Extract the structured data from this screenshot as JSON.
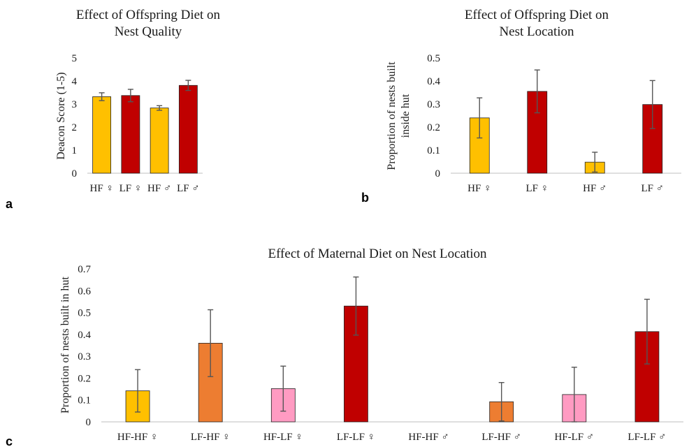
{
  "chart_data": [
    {
      "panel": "a",
      "type": "bar",
      "title_lines": [
        "Effect of Offspring Diet on",
        "Nest Quality"
      ],
      "ylabel_lines": [
        "Deacon Score (1-5)"
      ],
      "xlabel": "",
      "categories": [
        "HF ♀",
        "LF ♀",
        "HF ♂",
        "LF ♂"
      ],
      "values": [
        3.32,
        3.37,
        2.83,
        3.81
      ],
      "errors": [
        0.17,
        0.27,
        0.1,
        0.22
      ],
      "colors": [
        "#FFC000",
        "#C00000",
        "#FFC000",
        "#C00000"
      ],
      "ylim": [
        0,
        5
      ],
      "yticks": [
        "0",
        "1",
        "2",
        "3",
        "4",
        "5"
      ],
      "grid": false,
      "legend": "none"
    },
    {
      "panel": "b",
      "type": "bar",
      "title_lines": [
        "Effect of Offspring Diet on",
        "Nest Location"
      ],
      "ylabel_lines": [
        "Proportion of nests built",
        "inside hut"
      ],
      "xlabel": "",
      "categories": [
        "HF ♀",
        "LF ♀",
        "HF ♂",
        "LF ♂"
      ],
      "values": [
        0.24,
        0.355,
        0.048,
        0.298
      ],
      "errors": [
        0.087,
        0.093,
        0.043,
        0.104
      ],
      "colors": [
        "#FFC000",
        "#C00000",
        "#FFC000",
        "#C00000"
      ],
      "ylim": [
        0,
        0.5
      ],
      "yticks": [
        "0",
        "0.1",
        "0.2",
        "0.3",
        "0.4",
        "0.5"
      ],
      "grid": false,
      "legend": "none"
    },
    {
      "panel": "c",
      "type": "bar",
      "title_lines": [
        "Effect of Maternal Diet on Nest Location"
      ],
      "ylabel_lines": [
        "Proportion of nests built in hut"
      ],
      "xlabel": "",
      "categories": [
        "HF-HF ♀",
        "LF-HF ♀",
        "HF-LF ♀",
        "LF-LF ♀",
        "HF-HF ♂",
        "LF-HF ♂",
        "HF-LF ♂",
        "LF-LF ♂"
      ],
      "values": [
        0.142,
        0.36,
        0.152,
        0.53,
        0,
        0.092,
        0.125,
        0.413
      ],
      "errors": [
        0.097,
        0.153,
        0.103,
        0.133,
        0,
        0.088,
        0.125,
        0.148
      ],
      "colors": [
        "#FFC000",
        "#ED7D31",
        "#FF9BC2",
        "#C00000",
        "#FFC000",
        "#ED7D31",
        "#FF9BC2",
        "#C00000"
      ],
      "ylim": [
        0,
        0.7
      ],
      "yticks": [
        "0",
        "0.1",
        "0.2",
        "0.3",
        "0.4",
        "0.5",
        "0.6",
        "0.7"
      ],
      "grid": false,
      "legend": "none"
    }
  ]
}
